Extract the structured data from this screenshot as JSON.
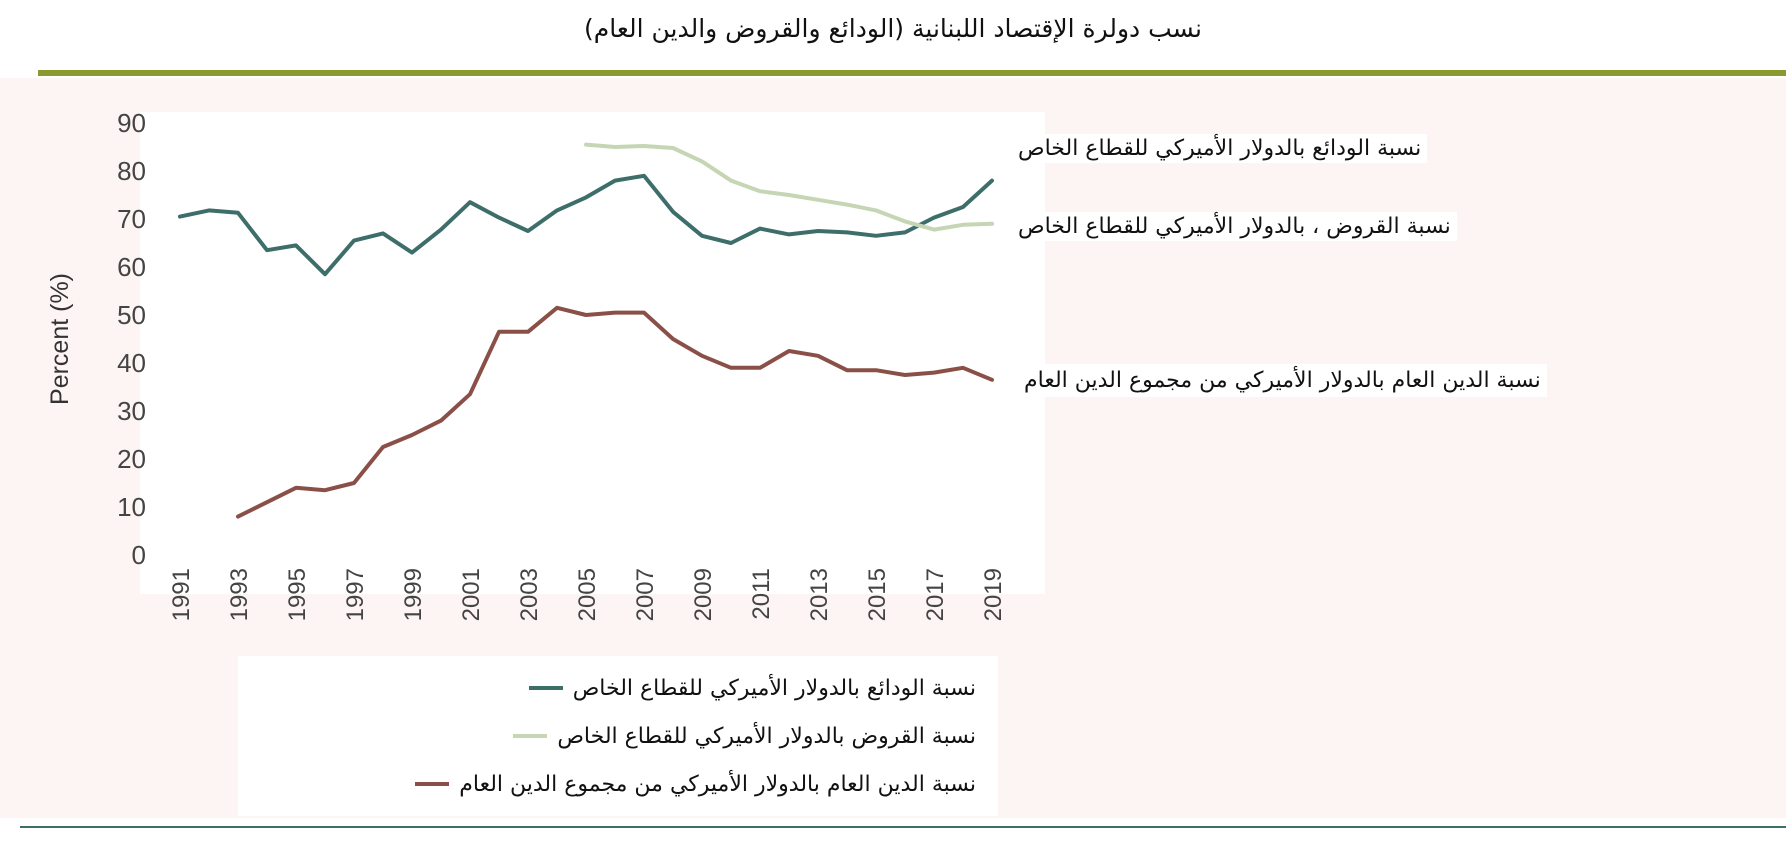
{
  "header": {
    "title": "نسب دولرة الإقتصاد اللبنانية (الودائع والقروض والدين العام)"
  },
  "chart_data": {
    "type": "line",
    "title": "نسب دولرة الإقتصاد اللبنانية (الودائع والقروض والدين العام)",
    "xlabel": "",
    "ylabel": "Percent (%)",
    "ylim": [
      0,
      90
    ],
    "yticks": [
      "0",
      "10",
      "20",
      "30",
      "40",
      "50",
      "60",
      "70",
      "80",
      "90"
    ],
    "xticks": [
      "1991",
      "1993",
      "1995",
      "1997",
      "1999",
      "2001",
      "2003",
      "2005",
      "2007",
      "2009",
      "2011",
      "2013",
      "2015",
      "2017",
      "2019"
    ],
    "grid": false,
    "legend_position": "bottom",
    "series": [
      {
        "name": "نسبة الودائع بالدولار الأميركي للقطاع الخاص",
        "color": "#3d6e6a",
        "x": [
          1991,
          1992,
          1993,
          1994,
          1995,
          1996,
          1997,
          1998,
          1999,
          2000,
          2001,
          2002,
          2003,
          2004,
          2005,
          2006,
          2007,
          2008,
          2009,
          2010,
          2011,
          2012,
          2013,
          2014,
          2015,
          2016,
          2017,
          2018,
          2019
        ],
        "values": [
          70.5,
          71.8,
          71.3,
          63.5,
          64.5,
          58.5,
          65.5,
          67,
          63,
          67.8,
          73.5,
          70.3,
          67.5,
          71.8,
          74.5,
          78,
          79,
          71.5,
          66.5,
          65,
          68,
          66.8,
          67.5,
          67.2,
          66.5,
          67.2,
          70.3,
          72.5,
          78
        ]
      },
      {
        "name": "نسبة القروض بالدولار الأميركي للقطاع الخاص",
        "color": "#c6d5b4",
        "x": [
          2005,
          2006,
          2007,
          2008,
          2009,
          2010,
          2011,
          2012,
          2013,
          2014,
          2015,
          2016,
          2017,
          2018,
          2019
        ],
        "values": [
          85.5,
          85,
          85.2,
          84.8,
          82,
          78,
          75.8,
          75,
          74,
          73,
          71.8,
          69.5,
          67.8,
          68.8,
          69
        ]
      },
      {
        "name": "نسبة الدين العام بالدولار الأميركي من مجموع الدين العام",
        "color": "#8a5048",
        "x": [
          1993,
          1994,
          1995,
          1996,
          1997,
          1998,
          1999,
          2000,
          2001,
          2002,
          2003,
          2004,
          2005,
          2006,
          2007,
          2008,
          2009,
          2010,
          2011,
          2012,
          2013,
          2014,
          2015,
          2016,
          2017,
          2018,
          2019
        ],
        "values": [
          8,
          11,
          14,
          13.5,
          15,
          22.5,
          25,
          28,
          33.5,
          46.5,
          46.5,
          51.5,
          50,
          50.5,
          50.5,
          45,
          41.5,
          39,
          39,
          42.5,
          41.5,
          38.5,
          38.5,
          37.5,
          38,
          39,
          36.5
        ]
      }
    ],
    "annotations": [
      "نسبة  الودائع بالدولار الأميركي للقطاع الخاص",
      "نسبة القروض ، بالدولار الأميركي للقطاع الخاص",
      "نسبة  الدين العام بالدولار الأميركي من مجموع الدين العام"
    ]
  },
  "legend": {
    "items": [
      {
        "label": "نسبة  الودائع بالدولار الأميركي للقطاع الخاص",
        "color": "#3d6e6a"
      },
      {
        "label": "نسبة القروض بالدولار الأميركي للقطاع الخاص",
        "color": "#c6d5b4"
      },
      {
        "label": "نسبة  الدين العام بالدولار الأميركي من مجموع الدين العام",
        "color": "#8a5048"
      }
    ]
  }
}
